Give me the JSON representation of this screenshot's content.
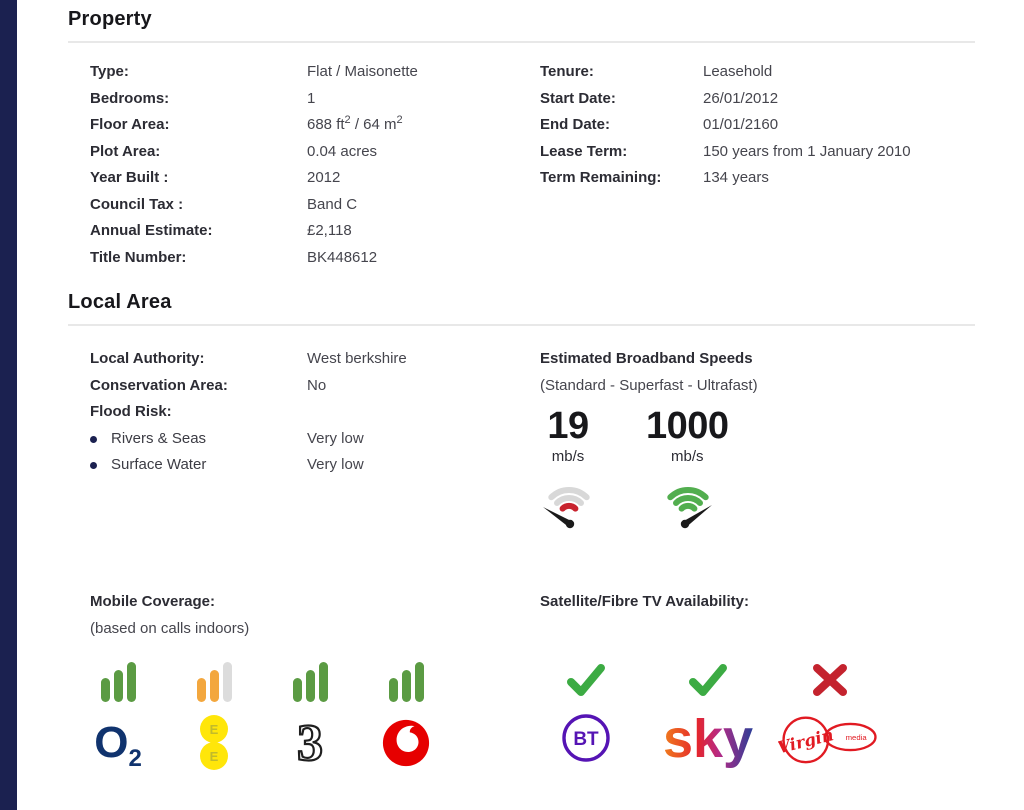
{
  "colors": {
    "sidebar_navy": "#1b2150",
    "divider_gray": "#e8e8e8",
    "text_dark": "#2c2c34",
    "check_green": "#3cab43",
    "cross_red": "#c4232e",
    "bar_green": "#5b9b43",
    "bar_orange": "#f3a73e",
    "bar_gray": "#dcdcdc",
    "o2_blue": "#10336e",
    "ee_yellow": "#ffe60a",
    "three_black": "#1f1f1f",
    "vodafone_red": "#e60000",
    "bt_purple": "#5514b4",
    "virgin_red": "#e11a22"
  },
  "property": {
    "title": "Property",
    "left_rows": [
      {
        "label": "Type:",
        "value": "Flat / Maisonette"
      },
      {
        "label": "Bedrooms:",
        "value": "1"
      },
      {
        "label": "Floor Area:",
        "value_imperial": "688 ft",
        "sup_imperial": "2",
        "value_metric": " / 64 m",
        "sup_metric": "2"
      },
      {
        "label": "Plot Area:",
        "value": "0.04 acres"
      },
      {
        "label": "Year Built :",
        "value": "2012"
      },
      {
        "label": "Council Tax :",
        "value": "Band C"
      },
      {
        "label": "Annual Estimate:",
        "value": "£2,118"
      },
      {
        "label": "Title Number:",
        "value": "BK448612"
      }
    ],
    "right_rows": [
      {
        "label": "Tenure:",
        "value": "Leasehold"
      },
      {
        "label": "Start Date:",
        "value": "26/01/2012"
      },
      {
        "label": "End Date:",
        "value": "01/01/2160"
      },
      {
        "label": "Lease Term:",
        "value": "150 years from 1 January 2010"
      },
      {
        "label": "Term Remaining:",
        "value": "134 years"
      }
    ]
  },
  "local_area": {
    "title": "Local Area",
    "left_rows": [
      {
        "label": "Local Authority:",
        "value": "West berkshire"
      },
      {
        "label": "Conservation Area:",
        "value": "No"
      }
    ],
    "flood": {
      "label": "Flood Risk:",
      "items": [
        {
          "label": "Rivers & Seas",
          "value": "Very low"
        },
        {
          "label": "Surface Water",
          "value": "Very low"
        }
      ]
    },
    "broadband": {
      "title": "Estimated Broadband Speeds",
      "subtitle": "(Standard - Superfast - Ultrafast)",
      "speeds": [
        {
          "value": "19",
          "unit": "mb/s",
          "icon": "speedometer-slow-icon",
          "arc_color": "#d8d8d8",
          "accent_color": "#c8232e"
        },
        {
          "value": "1000",
          "unit": "mb/s",
          "icon": "speedometer-fast-icon",
          "arc_color": "#52ae4f"
        }
      ]
    },
    "mobile": {
      "title": "Mobile Coverage:",
      "subtitle": "(based on calls indoors)",
      "bar_colors": {
        "green": "#5b9b43",
        "orange": "#f3a73e",
        "gray": "#dcdcdc"
      },
      "carriers": [
        {
          "name": "O2",
          "signal": [
            "green",
            "green",
            "green"
          ],
          "logo_main": "O",
          "logo_sub": "2"
        },
        {
          "name": "EE",
          "signal": [
            "orange",
            "orange",
            "gray"
          ],
          "logo_letters": [
            "E",
            "E"
          ]
        },
        {
          "name": "Three",
          "signal": [
            "green",
            "green",
            "green"
          ],
          "logo_text": "3"
        },
        {
          "name": "Vodafone",
          "signal": [
            "green",
            "green",
            "green"
          ]
        }
      ]
    },
    "tv": {
      "title": "Satellite/Fibre TV Availability:",
      "providers": [
        {
          "name": "BT",
          "available": true,
          "logo_text": "BT"
        },
        {
          "name": "Sky",
          "available": true,
          "logo_text": "sky"
        },
        {
          "name": "Virgin Media",
          "available": false,
          "logo_text": "Virgin",
          "logo_sub_text": "media"
        }
      ]
    }
  }
}
